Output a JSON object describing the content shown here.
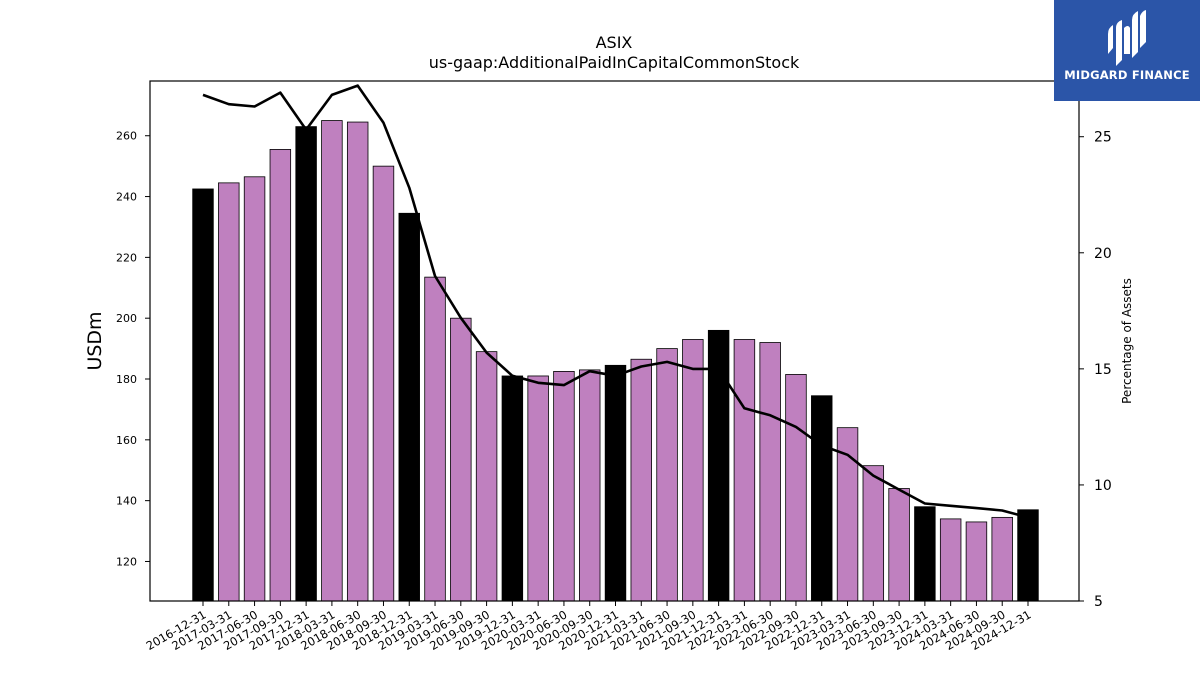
{
  "chart_data": {
    "type": "bar",
    "title": "ASIX",
    "subtitle": "us-gaap:AdditionalPaidInCapitalCommonStock",
    "ylabel": "USDm",
    "y2label": "Percentage of Assets",
    "ylim": [
      107,
      278
    ],
    "y2lim": [
      5,
      27.4
    ],
    "yticks": [
      120,
      140,
      160,
      180,
      200,
      220,
      240,
      260
    ],
    "y2ticks": [
      5,
      10,
      15,
      20,
      25
    ],
    "categories": [
      "2016-12-31",
      "2017-03-31",
      "2017-06-30",
      "2017-09-30",
      "2017-12-31",
      "2018-03-31",
      "2018-06-30",
      "2018-09-30",
      "2018-12-31",
      "2019-03-31",
      "2019-06-30",
      "2019-09-30",
      "2019-12-31",
      "2020-03-31",
      "2020-06-30",
      "2020-09-30",
      "2020-12-31",
      "2021-03-31",
      "2021-06-30",
      "2021-09-30",
      "2021-12-31",
      "2022-03-31",
      "2022-06-30",
      "2022-09-30",
      "2022-12-31",
      "2023-03-31",
      "2023-06-30",
      "2023-09-30",
      "2023-12-31",
      "2024-03-31",
      "2024-06-30",
      "2024-09-30",
      "2024-12-31"
    ],
    "series": [
      {
        "type": "bar",
        "values": [
          242.5,
          244.5,
          246.5,
          255.5,
          263,
          265,
          264.5,
          250,
          234.5,
          213.5,
          200,
          189,
          181,
          181,
          182.5,
          183,
          184.5,
          186.5,
          190,
          193,
          196,
          193,
          192,
          181.5,
          174.5,
          164,
          151.5,
          144,
          138,
          134,
          133,
          134.5,
          137
        ]
      },
      {
        "type": "line",
        "axis": "right",
        "values": [
          26.8,
          26.4,
          26.3,
          26.9,
          25.3,
          26.8,
          27.2,
          25.6,
          22.8,
          19,
          17.2,
          15.7,
          14.7,
          14.4,
          14.3,
          14.9,
          14.7,
          15.1,
          15.3,
          15.0,
          15.0,
          13.3,
          13.0,
          12.5,
          11.7,
          11.3,
          10.4,
          9.8,
          9.2,
          9.1,
          9.0,
          8.9,
          8.6
        ]
      }
    ],
    "bar_colors": {
      "year_end": "#000000",
      "quarter": "#bf80bf"
    },
    "line_color": "#000000",
    "grid": false
  },
  "logo": {
    "text": "MIDGARD FINANCE",
    "bg_color": "#2b55a8"
  }
}
